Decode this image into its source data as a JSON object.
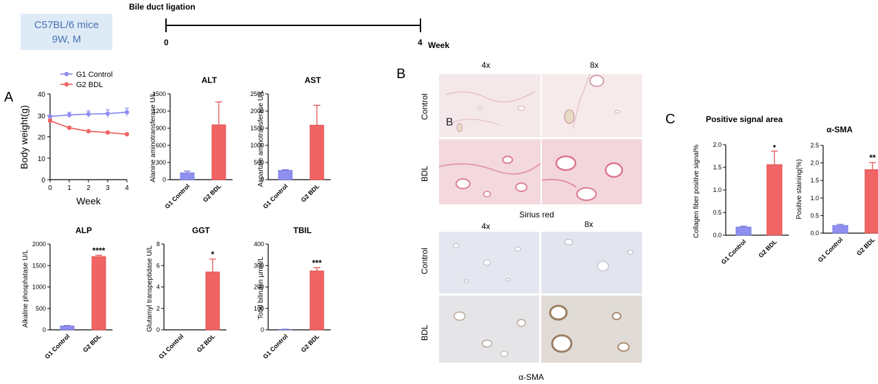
{
  "info_box": {
    "line1": "C57BL/6 mice",
    "line2": "9W, M"
  },
  "timeline": {
    "title": "Bile duct ligation",
    "start_label": "0",
    "end_label": "4",
    "unit": "Week"
  },
  "panel_labels": {
    "a": "A",
    "b": "B",
    "c": "C"
  },
  "colors": {
    "control": "#8f8ff0",
    "bdl": "#f06464",
    "control_edge": "#6f6fd8",
    "bdl_edge": "#e04848"
  },
  "micro": {
    "cols_top": [
      "4x",
      "8x"
    ],
    "cols_bottom": [
      "4x",
      "8x"
    ],
    "rows_top": [
      "Control",
      "BDL"
    ],
    "rows_bottom": [
      "Control",
      "BDL"
    ],
    "inset_letter": "B",
    "caption_top": "Sirius red",
    "caption_bottom": "α-SMA"
  },
  "chart_data": [
    {
      "id": "bodyweight",
      "type": "line",
      "title": "",
      "xlabel": "Week",
      "ylabel": "Body weight(g)",
      "x": [
        0,
        1,
        2,
        3,
        4
      ],
      "xlim": [
        0,
        4
      ],
      "ylim": [
        0,
        40
      ],
      "xticks": [
        "0",
        "1",
        "2",
        "3",
        "4"
      ],
      "yticks": [
        "0",
        "10",
        "20",
        "30",
        "40"
      ],
      "legend": [
        "G1 Control",
        "G2 BDL"
      ],
      "series": [
        {
          "name": "G1 Control",
          "values": [
            29.5,
            30.2,
            30.6,
            30.8,
            31.5
          ],
          "errors": [
            0.6,
            1.2,
            1.5,
            1.8,
            1.9
          ]
        },
        {
          "name": "G2 BDL",
          "values": [
            27.5,
            24.2,
            22.6,
            22.0,
            21.2
          ],
          "errors": [
            0.8,
            0.6,
            0.4,
            0.5,
            0.4
          ]
        }
      ]
    },
    {
      "id": "alt",
      "type": "bar",
      "title": "ALT",
      "ylabel": "Alanine aminotransferase U/L",
      "categories": [
        "G1 Control",
        "G2 BDL"
      ],
      "values": [
        120,
        960
      ],
      "errors": [
        30,
        400
      ],
      "ylim": [
        0,
        1500
      ],
      "yticks": [
        "0",
        "300",
        "600",
        "900",
        "1200",
        "1500"
      ],
      "significance": ""
    },
    {
      "id": "ast",
      "type": "bar",
      "title": "AST",
      "ylabel": "Aspartate aminotransferase U/L",
      "categories": [
        "G1 Control",
        "G2 BDL"
      ],
      "values": [
        270,
        1590
      ],
      "errors": [
        20,
        580
      ],
      "ylim": [
        0,
        2500
      ],
      "yticks": [
        "0",
        "500",
        "1000",
        "1500",
        "2000",
        "2500"
      ],
      "significance": ""
    },
    {
      "id": "alp",
      "type": "bar",
      "title": "ALP",
      "ylabel": "Alkaline phosphatase U/L",
      "categories": [
        "G1 Control",
        "G2 BDL"
      ],
      "values": [
        90,
        1710
      ],
      "errors": [
        10,
        30
      ],
      "ylim": [
        0,
        2000
      ],
      "yticks": [
        "0",
        "500",
        "1000",
        "1500",
        "2000"
      ],
      "significance": "****"
    },
    {
      "id": "ggt",
      "type": "bar",
      "title": "GGT",
      "ylabel": "Glutamyl transpeptidase U/L",
      "categories": [
        "G1 Control",
        "G2 BDL"
      ],
      "values": [
        0,
        5.4
      ],
      "errors": [
        0,
        1.2
      ],
      "ylim": [
        0,
        8
      ],
      "yticks": [
        "0",
        "2",
        "4",
        "6",
        "8"
      ],
      "significance": "*"
    },
    {
      "id": "tbil",
      "type": "bar",
      "title": "TBIL",
      "ylabel": "Total bilirubin μmol/L",
      "categories": [
        "G1 Control",
        "G2 BDL"
      ],
      "values": [
        2,
        275
      ],
      "errors": [
        1,
        15
      ],
      "ylim": [
        0,
        400
      ],
      "yticks": [
        "0",
        "100",
        "200",
        "300",
        "400"
      ],
      "significance": "***"
    },
    {
      "id": "collagen",
      "type": "bar",
      "title": "Positive signal area",
      "ylabel": "Collagen fiber positive signal%",
      "categories": [
        "G1 Control",
        "G2 BDL"
      ],
      "values": [
        0.18,
        1.56
      ],
      "errors": [
        0.02,
        0.3
      ],
      "ylim": [
        0,
        2.0
      ],
      "yticks": [
        "0.0",
        "0.5",
        "1.0",
        "1.5",
        "2.0"
      ],
      "significance": "•"
    },
    {
      "id": "asma",
      "type": "bar",
      "title": "α-SMA",
      "ylabel": "Positive staining(%)",
      "categories": [
        "G1 Control",
        "G2 BDL"
      ],
      "values": [
        0.22,
        1.81
      ],
      "errors": [
        0.03,
        0.2
      ],
      "ylim": [
        0,
        2.5
      ],
      "yticks": [
        "0.0",
        "0.5",
        "1.0",
        "1.5",
        "2.0",
        "2.5"
      ],
      "significance": "**"
    }
  ]
}
